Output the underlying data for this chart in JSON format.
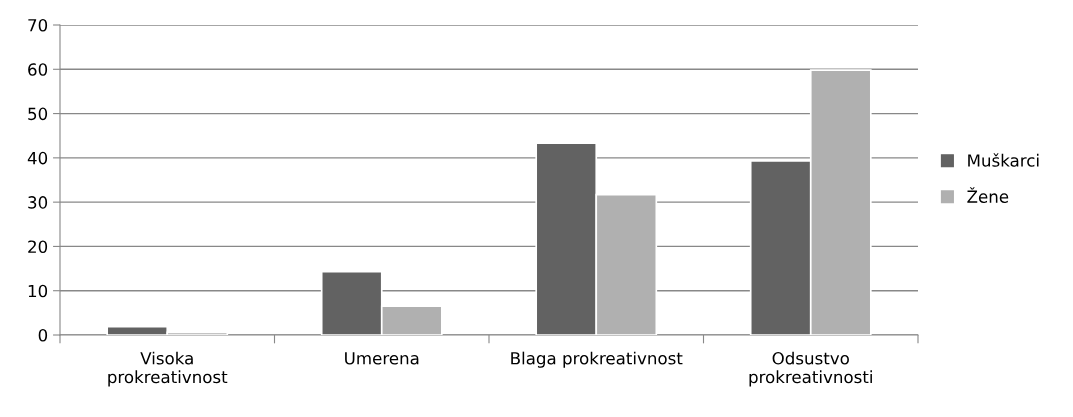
{
  "chart_data": {
    "type": "bar",
    "categories": [
      "Visoka\nprokreativnost",
      "Umerena",
      "Blaga prokreativnost",
      "Odsustvo\nprokreativnosti"
    ],
    "series": [
      {
        "name": "Muškarci",
        "color": "#626262",
        "values": [
          1.9,
          14.3,
          43.3,
          39.3
        ]
      },
      {
        "name": "Žene",
        "color": "#b0b0b0",
        "values": [
          0.6,
          6.5,
          31.7,
          59.8
        ]
      }
    ],
    "ylim": [
      0,
      70
    ],
    "yticks": [
      0,
      10,
      20,
      30,
      40,
      50,
      60,
      70
    ],
    "grid": "y",
    "legend": "right"
  }
}
